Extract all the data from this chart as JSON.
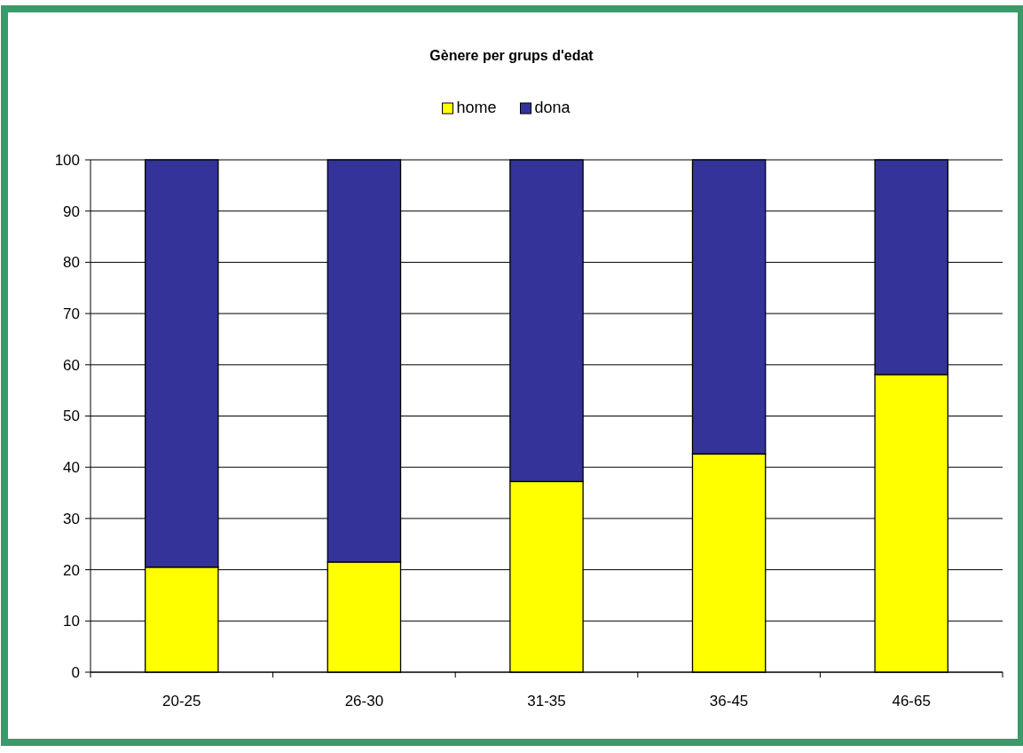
{
  "chart_data": {
    "type": "bar",
    "title": "Gènere per grups d'edat",
    "categories": [
      "20-25",
      "26-30",
      "31-35",
      "36-45",
      "46-65"
    ],
    "stacked": true,
    "series": [
      {
        "name": "home",
        "color": "#ffff00",
        "values": [
          20.5,
          21.5,
          37.2,
          42.6,
          58.1
        ]
      },
      {
        "name": "dona",
        "color": "#333399",
        "values": [
          79.5,
          78.5,
          62.8,
          57.4,
          41.9
        ]
      }
    ],
    "ylim": [
      0,
      100
    ],
    "yticks": [
      0,
      10,
      20,
      30,
      40,
      50,
      60,
      70,
      80,
      90,
      100
    ],
    "grid": "y",
    "legend": "top"
  }
}
